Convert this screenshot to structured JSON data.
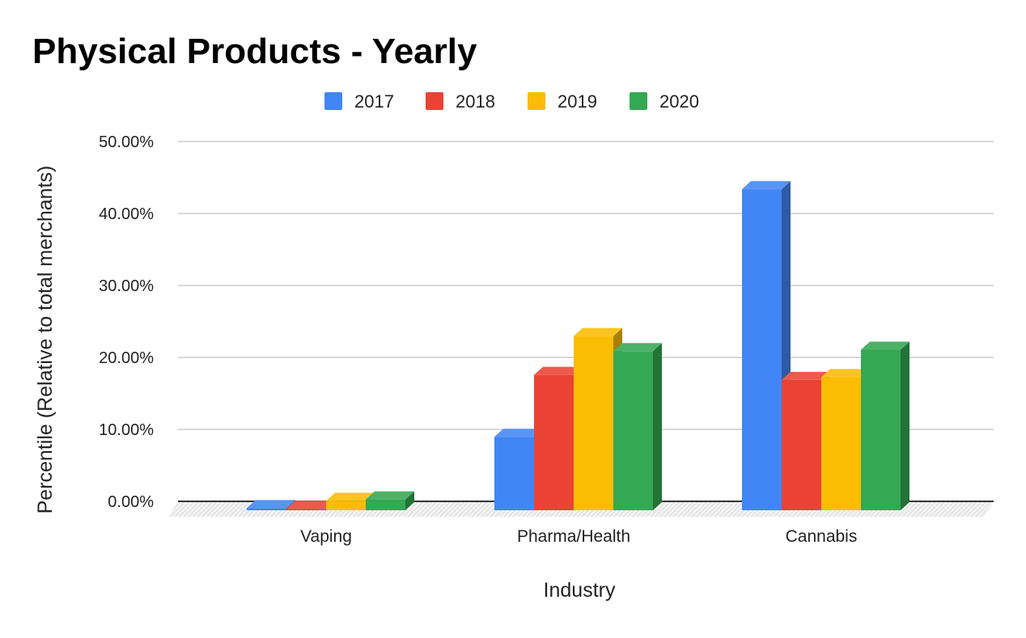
{
  "chart_data": {
    "type": "bar",
    "title": "Physical Products - Yearly",
    "xlabel": "Industry",
    "ylabel": "Percentile (Relative to total merchants)",
    "categories": [
      "Vaping",
      "Pharma/Health",
      "Cannabis"
    ],
    "series": [
      {
        "name": "2017",
        "color": "#4285f4",
        "values": [
          0.3,
          10.2,
          44.6
        ]
      },
      {
        "name": "2018",
        "color": "#ea4335",
        "values": [
          0.2,
          18.8,
          18.1
        ]
      },
      {
        "name": "2019",
        "color": "#fbbc04",
        "values": [
          1.3,
          24.2,
          18.5
        ]
      },
      {
        "name": "2020",
        "color": "#34a853",
        "values": [
          1.5,
          22.1,
          22.3
        ]
      }
    ],
    "ylim": [
      0,
      50
    ],
    "yticks": [
      0,
      10,
      20,
      30,
      40,
      50
    ],
    "ytick_labels": [
      "0.00%",
      "10.00%",
      "20.00%",
      "30.00%",
      "40.00%",
      "50.00%"
    ],
    "grid": true,
    "legend_position": "top-center",
    "style": "3d"
  }
}
